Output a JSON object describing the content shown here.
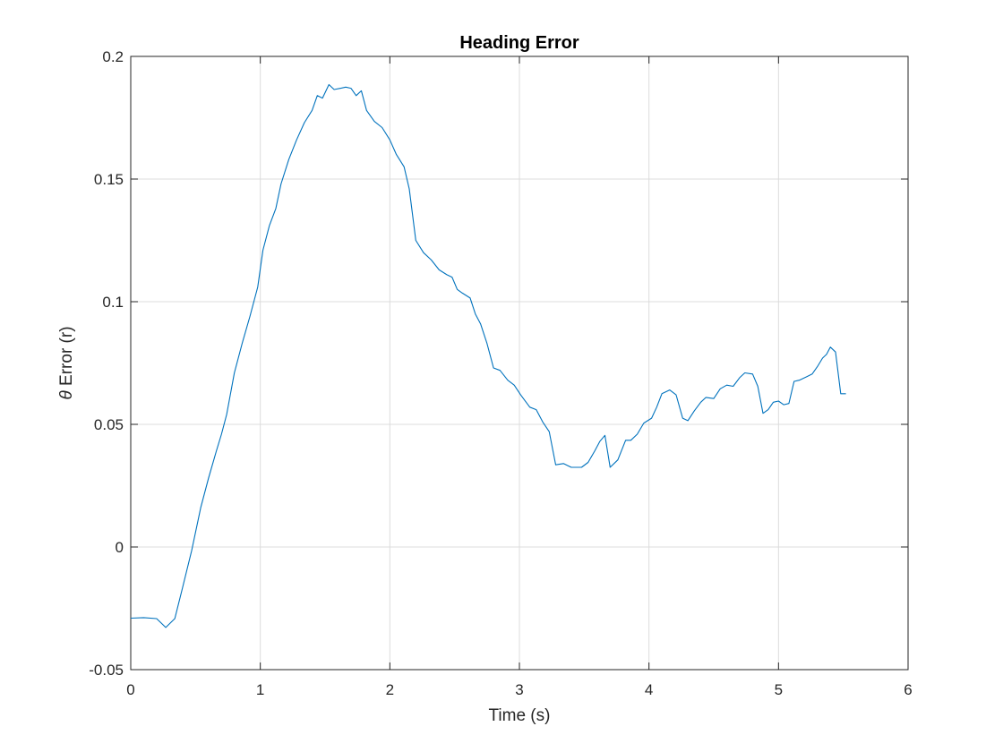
{
  "chart_data": {
    "type": "line",
    "title": "Heading Error",
    "xlabel": "Time (s)",
    "ylabel_symbol": "θ",
    "ylabel_text": " Error (r)",
    "xlim": [
      0,
      6
    ],
    "ylim": [
      -0.05,
      0.2
    ],
    "xticks": [
      0,
      1,
      2,
      3,
      4,
      5,
      6
    ],
    "xtick_labels": [
      "0",
      "1",
      "2",
      "3",
      "4",
      "5",
      "6"
    ],
    "yticks": [
      -0.05,
      0,
      0.05,
      0.1,
      0.15,
      0.2
    ],
    "ytick_labels": [
      "-0.05",
      "0",
      "0.05",
      "0.1",
      "0.15",
      "0.2"
    ],
    "grid": true,
    "series_color": "#0072BD",
    "series": [
      {
        "x": [
          0.0,
          0.1,
          0.2,
          0.27,
          0.34,
          0.4,
          0.47,
          0.54,
          0.6,
          0.66,
          0.7,
          0.74,
          0.8,
          0.86,
          0.92,
          0.98,
          1.02,
          1.07,
          1.12,
          1.16,
          1.22,
          1.28,
          1.34,
          1.4,
          1.44,
          1.48,
          1.53,
          1.57,
          1.62,
          1.66,
          1.7,
          1.74,
          1.78,
          1.82,
          1.88,
          1.94,
          2.0,
          2.05,
          2.11,
          2.15,
          2.2,
          2.26,
          2.32,
          2.38,
          2.44,
          2.48,
          2.52,
          2.56,
          2.62,
          2.66,
          2.7,
          2.75,
          2.8,
          2.85,
          2.91,
          2.96,
          3.01,
          3.08,
          3.13,
          3.18,
          3.23,
          3.28,
          3.34,
          3.4,
          3.43,
          3.48,
          3.53,
          3.58,
          3.62,
          3.66,
          3.7,
          3.76,
          3.82,
          3.86,
          3.91,
          3.96,
          4.02,
          4.06,
          4.1,
          4.16,
          4.21,
          4.26,
          4.3,
          4.35,
          4.4,
          4.44,
          4.5,
          4.55,
          4.6,
          4.65,
          4.7,
          4.74,
          4.8,
          4.84,
          4.88,
          4.92,
          4.96,
          5.0,
          5.04,
          5.08,
          5.12,
          5.16,
          5.22,
          5.26,
          5.3,
          5.34,
          5.37,
          5.4,
          5.44,
          5.48,
          5.52
        ],
        "y": [
          -0.029,
          -0.0288,
          -0.0292,
          -0.0328,
          -0.0292,
          -0.0165,
          -0.0015,
          0.016,
          0.028,
          0.039,
          0.046,
          0.054,
          0.071,
          0.083,
          0.094,
          0.106,
          0.121,
          0.131,
          0.138,
          0.148,
          0.158,
          0.166,
          0.173,
          0.178,
          0.184,
          0.183,
          0.1885,
          0.1865,
          0.187,
          0.1875,
          0.187,
          0.184,
          0.186,
          0.178,
          0.1735,
          0.171,
          0.166,
          0.16,
          0.155,
          0.146,
          0.125,
          0.12,
          0.117,
          0.113,
          0.111,
          0.11,
          0.105,
          0.1035,
          0.1015,
          0.095,
          0.091,
          0.083,
          0.073,
          0.072,
          0.068,
          0.066,
          0.062,
          0.057,
          0.056,
          0.051,
          0.047,
          0.0335,
          0.034,
          0.0325,
          0.0325,
          0.0325,
          0.0345,
          0.039,
          0.043,
          0.0455,
          0.0325,
          0.0355,
          0.0435,
          0.0435,
          0.046,
          0.0505,
          0.0525,
          0.057,
          0.0625,
          0.064,
          0.062,
          0.0525,
          0.0515,
          0.0555,
          0.059,
          0.061,
          0.0605,
          0.0645,
          0.066,
          0.0655,
          0.069,
          0.071,
          0.0705,
          0.0655,
          0.0545,
          0.056,
          0.059,
          0.0595,
          0.058,
          0.0585,
          0.0675,
          0.068,
          0.0695,
          0.0705,
          0.0735,
          0.077,
          0.0785,
          0.0815,
          0.0795,
          0.0625,
          0.0625
        ]
      }
    ]
  }
}
